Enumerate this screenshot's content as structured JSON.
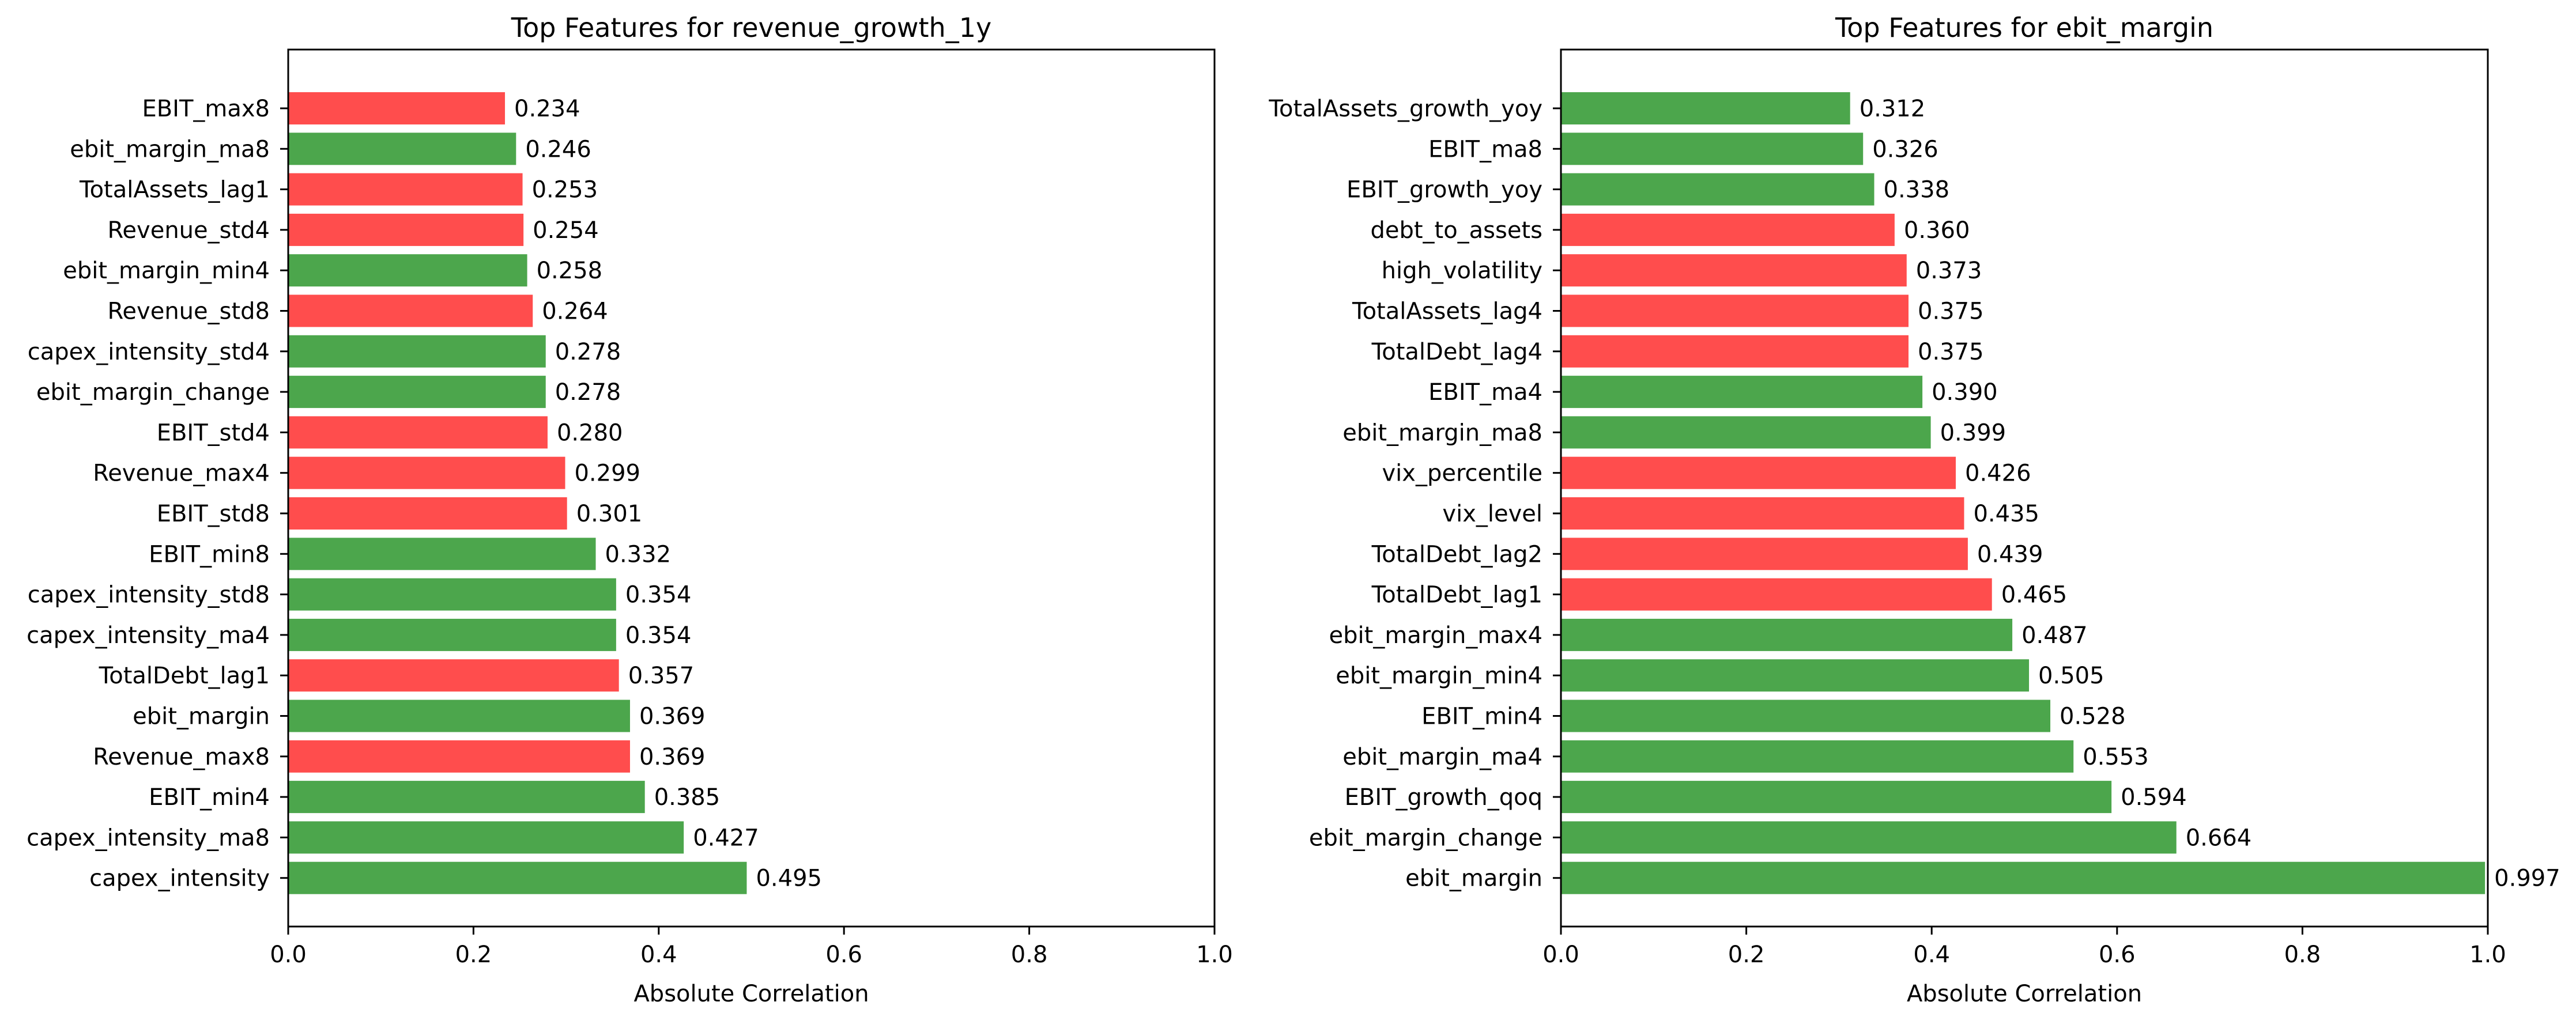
{
  "colors": {
    "positive": "#4ca64c",
    "negative": "#ff4d4d"
  },
  "chart_data": [
    {
      "type": "bar",
      "orientation": "horizontal",
      "title": "Top Features for revenue_growth_1y",
      "xlabel": "Absolute Correlation",
      "ylabel": "",
      "xlim": [
        0,
        1.0
      ],
      "xticks": [
        "0.0",
        "0.2",
        "0.4",
        "0.6",
        "0.8",
        "1.0"
      ],
      "grid": false,
      "bars": [
        {
          "label": "EBIT_max8",
          "value": 0.234,
          "value_text": "0.234",
          "sign": "negative"
        },
        {
          "label": "ebit_margin_ma8",
          "value": 0.246,
          "value_text": "0.246",
          "sign": "positive"
        },
        {
          "label": "TotalAssets_lag1",
          "value": 0.253,
          "value_text": "0.253",
          "sign": "negative"
        },
        {
          "label": "Revenue_std4",
          "value": 0.254,
          "value_text": "0.254",
          "sign": "negative"
        },
        {
          "label": "ebit_margin_min4",
          "value": 0.258,
          "value_text": "0.258",
          "sign": "positive"
        },
        {
          "label": "Revenue_std8",
          "value": 0.264,
          "value_text": "0.264",
          "sign": "negative"
        },
        {
          "label": "capex_intensity_std4",
          "value": 0.278,
          "value_text": "0.278",
          "sign": "positive"
        },
        {
          "label": "ebit_margin_change",
          "value": 0.278,
          "value_text": "0.278",
          "sign": "positive"
        },
        {
          "label": "EBIT_std4",
          "value": 0.28,
          "value_text": "0.280",
          "sign": "negative"
        },
        {
          "label": "Revenue_max4",
          "value": 0.299,
          "value_text": "0.299",
          "sign": "negative"
        },
        {
          "label": "EBIT_std8",
          "value": 0.301,
          "value_text": "0.301",
          "sign": "negative"
        },
        {
          "label": "EBIT_min8",
          "value": 0.332,
          "value_text": "0.332",
          "sign": "positive"
        },
        {
          "label": "capex_intensity_std8",
          "value": 0.354,
          "value_text": "0.354",
          "sign": "positive"
        },
        {
          "label": "capex_intensity_ma4",
          "value": 0.354,
          "value_text": "0.354",
          "sign": "positive"
        },
        {
          "label": "TotalDebt_lag1",
          "value": 0.357,
          "value_text": "0.357",
          "sign": "negative"
        },
        {
          "label": "ebit_margin",
          "value": 0.369,
          "value_text": "0.369",
          "sign": "positive"
        },
        {
          "label": "Revenue_max8",
          "value": 0.369,
          "value_text": "0.369",
          "sign": "negative"
        },
        {
          "label": "EBIT_min4",
          "value": 0.385,
          "value_text": "0.385",
          "sign": "positive"
        },
        {
          "label": "capex_intensity_ma8",
          "value": 0.427,
          "value_text": "0.427",
          "sign": "positive"
        },
        {
          "label": "capex_intensity",
          "value": 0.495,
          "value_text": "0.495",
          "sign": "positive"
        }
      ]
    },
    {
      "type": "bar",
      "orientation": "horizontal",
      "title": "Top Features for ebit_margin",
      "xlabel": "Absolute Correlation",
      "ylabel": "",
      "xlim": [
        0,
        1.0
      ],
      "xticks": [
        "0.0",
        "0.2",
        "0.4",
        "0.6",
        "0.8",
        "1.0"
      ],
      "grid": false,
      "bars": [
        {
          "label": "TotalAssets_growth_yoy",
          "value": 0.312,
          "value_text": "0.312",
          "sign": "positive"
        },
        {
          "label": "EBIT_ma8",
          "value": 0.326,
          "value_text": "0.326",
          "sign": "positive"
        },
        {
          "label": "EBIT_growth_yoy",
          "value": 0.338,
          "value_text": "0.338",
          "sign": "positive"
        },
        {
          "label": "debt_to_assets",
          "value": 0.36,
          "value_text": "0.360",
          "sign": "negative"
        },
        {
          "label": "high_volatility",
          "value": 0.373,
          "value_text": "0.373",
          "sign": "negative"
        },
        {
          "label": "TotalAssets_lag4",
          "value": 0.375,
          "value_text": "0.375",
          "sign": "negative"
        },
        {
          "label": "TotalDebt_lag4",
          "value": 0.375,
          "value_text": "0.375",
          "sign": "negative"
        },
        {
          "label": "EBIT_ma4",
          "value": 0.39,
          "value_text": "0.390",
          "sign": "positive"
        },
        {
          "label": "ebit_margin_ma8",
          "value": 0.399,
          "value_text": "0.399",
          "sign": "positive"
        },
        {
          "label": "vix_percentile",
          "value": 0.426,
          "value_text": "0.426",
          "sign": "negative"
        },
        {
          "label": "vix_level",
          "value": 0.435,
          "value_text": "0.435",
          "sign": "negative"
        },
        {
          "label": "TotalDebt_lag2",
          "value": 0.439,
          "value_text": "0.439",
          "sign": "negative"
        },
        {
          "label": "TotalDebt_lag1",
          "value": 0.465,
          "value_text": "0.465",
          "sign": "negative"
        },
        {
          "label": "ebit_margin_max4",
          "value": 0.487,
          "value_text": "0.487",
          "sign": "positive"
        },
        {
          "label": "ebit_margin_min4",
          "value": 0.505,
          "value_text": "0.505",
          "sign": "positive"
        },
        {
          "label": "EBIT_min4",
          "value": 0.528,
          "value_text": "0.528",
          "sign": "positive"
        },
        {
          "label": "ebit_margin_ma4",
          "value": 0.553,
          "value_text": "0.553",
          "sign": "positive"
        },
        {
          "label": "EBIT_growth_qoq",
          "value": 0.594,
          "value_text": "0.594",
          "sign": "positive"
        },
        {
          "label": "ebit_margin_change",
          "value": 0.664,
          "value_text": "0.664",
          "sign": "positive"
        },
        {
          "label": "ebit_margin",
          "value": 0.997,
          "value_text": "0.997",
          "sign": "positive"
        }
      ]
    }
  ]
}
